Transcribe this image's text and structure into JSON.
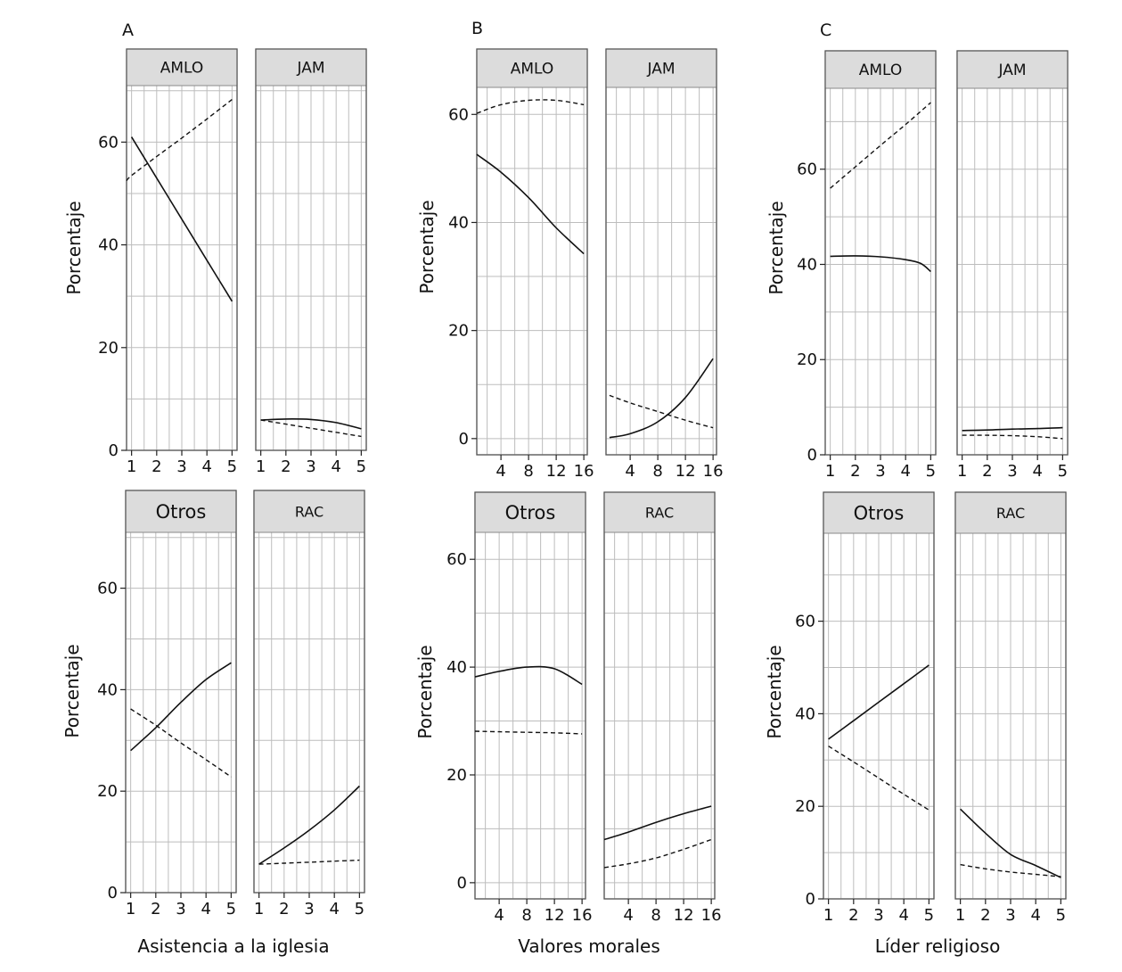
{
  "figure": {
    "common_ylabel": "Porcentaje",
    "column_titles": [
      "A",
      "B",
      "C"
    ],
    "xlabels": [
      "Asistencia a la iglesia",
      "Valores morales",
      "Líder religioso"
    ]
  },
  "chart_data": [
    {
      "type": "line",
      "column": "A",
      "title": "AMLO",
      "xlabel": "",
      "ylabel": "Porcentaje",
      "xlim": [
        0.8,
        5.2
      ],
      "ylim": [
        0,
        71
      ],
      "xticks": [
        1,
        2,
        3,
        4,
        5
      ],
      "yticks": [
        0,
        20,
        40,
        60
      ],
      "series": [
        {
          "name": "solid",
          "style": "solid",
          "x": [
            1,
            2,
            3,
            4,
            5
          ],
          "y": [
            61,
            53,
            45,
            37,
            29
          ]
        },
        {
          "name": "dashed",
          "style": "dashed",
          "x": [
            0.8,
            1,
            2,
            3,
            4,
            5
          ],
          "y": [
            52.5,
            53.5,
            57.2,
            60.8,
            64.5,
            68.3
          ]
        }
      ]
    },
    {
      "type": "line",
      "column": "A",
      "title": "JAM",
      "xlabel": "",
      "ylabel": "",
      "xlim": [
        0.8,
        5.2
      ],
      "ylim": [
        0,
        71
      ],
      "xticks": [
        1,
        2,
        3,
        4,
        5
      ],
      "yticks": [],
      "series": [
        {
          "name": "solid",
          "style": "solid",
          "x": [
            1,
            2,
            3,
            4,
            5
          ],
          "y": [
            5.9,
            6.1,
            6.0,
            5.4,
            4.2
          ]
        },
        {
          "name": "dashed",
          "style": "dashed",
          "x": [
            1,
            2,
            3,
            4,
            5
          ],
          "y": [
            5.9,
            5.1,
            4.3,
            3.5,
            2.7
          ]
        }
      ]
    },
    {
      "type": "line",
      "column": "A",
      "title": "Otros",
      "xlabel": "Asistencia a la iglesia",
      "ylabel": "Porcentaje",
      "xlim": [
        0.8,
        5.2
      ],
      "ylim": [
        0,
        71
      ],
      "xticks": [
        1,
        2,
        3,
        4,
        5
      ],
      "yticks": [
        0,
        20,
        40,
        60
      ],
      "series": [
        {
          "name": "solid",
          "style": "solid",
          "x": [
            1,
            2,
            3,
            4,
            5
          ],
          "y": [
            28,
            32.5,
            37.5,
            42,
            45.3
          ]
        },
        {
          "name": "dashed",
          "style": "dashed",
          "x": [
            1,
            2,
            3,
            4,
            5
          ],
          "y": [
            36.2,
            33,
            29.5,
            26.2,
            22.8
          ]
        }
      ]
    },
    {
      "type": "line",
      "column": "A",
      "title": "RAC",
      "xlabel": "Asistencia a la iglesia",
      "ylabel": "",
      "xlim": [
        0.8,
        5.2
      ],
      "ylim": [
        0,
        71
      ],
      "xticks": [
        1,
        2,
        3,
        4,
        5
      ],
      "yticks": [],
      "series": [
        {
          "name": "solid",
          "style": "solid",
          "x": [
            1,
            2,
            3,
            4,
            5
          ],
          "y": [
            5.6,
            8.8,
            12.3,
            16.3,
            21
          ]
        },
        {
          "name": "dashed",
          "style": "dashed",
          "x": [
            1,
            2,
            3,
            4,
            5
          ],
          "y": [
            5.6,
            5.8,
            6.0,
            6.2,
            6.4
          ]
        }
      ]
    },
    {
      "type": "line",
      "column": "B",
      "title": "AMLO",
      "xlabel": "",
      "ylabel": "Porcentaje",
      "xlim": [
        0.5,
        16.5
      ],
      "ylim": [
        -3,
        65
      ],
      "xticks": [
        4,
        8,
        12,
        16
      ],
      "yticks": [
        0,
        20,
        40,
        60
      ],
      "series": [
        {
          "name": "solid",
          "style": "solid",
          "x": [
            0.5,
            4,
            8,
            12,
            16
          ],
          "y": [
            52.6,
            49.3,
            44.6,
            39.0,
            34.2
          ]
        },
        {
          "name": "dashed",
          "style": "dashed",
          "x": [
            0.5,
            4,
            8,
            12,
            16
          ],
          "y": [
            60.2,
            61.8,
            62.6,
            62.6,
            61.8
          ]
        }
      ]
    },
    {
      "type": "line",
      "column": "B",
      "title": "JAM",
      "xlabel": "",
      "ylabel": "",
      "xlim": [
        0.5,
        16.5
      ],
      "ylim": [
        -3,
        65
      ],
      "xticks": [
        4,
        8,
        12,
        16
      ],
      "yticks": [],
      "series": [
        {
          "name": "solid",
          "style": "solid",
          "x": [
            1,
            4,
            8,
            12,
            16
          ],
          "y": [
            0.2,
            0.9,
            3.1,
            7.6,
            14.8
          ]
        },
        {
          "name": "dashed",
          "style": "dashed",
          "x": [
            1,
            4,
            8,
            12,
            16
          ],
          "y": [
            8,
            6.6,
            5.0,
            3.4,
            2.0
          ]
        }
      ]
    },
    {
      "type": "line",
      "column": "B",
      "title": "Otros",
      "xlabel": "Valores morales",
      "ylabel": "Porcentaje",
      "xlim": [
        0.5,
        16.5
      ],
      "ylim": [
        -3,
        65
      ],
      "xticks": [
        4,
        8,
        12,
        16
      ],
      "yticks": [
        0,
        20,
        40,
        60
      ],
      "series": [
        {
          "name": "solid",
          "style": "solid",
          "x": [
            0.5,
            4,
            8,
            12,
            16
          ],
          "y": [
            38.2,
            39.2,
            40.0,
            39.7,
            36.8
          ]
        },
        {
          "name": "dashed",
          "style": "dashed",
          "x": [
            0.5,
            4,
            8,
            12,
            16
          ],
          "y": [
            28.1,
            28.0,
            27.9,
            27.8,
            27.6
          ]
        }
      ]
    },
    {
      "type": "line",
      "column": "B",
      "title": "RAC",
      "xlabel": "Valores morales",
      "ylabel": "",
      "xlim": [
        0.5,
        16.5
      ],
      "ylim": [
        -3,
        65
      ],
      "xticks": [
        4,
        8,
        12,
        16
      ],
      "yticks": [],
      "series": [
        {
          "name": "solid",
          "style": "solid",
          "x": [
            0.5,
            4,
            8,
            12,
            16
          ],
          "y": [
            8,
            9.4,
            11.2,
            12.8,
            14.2
          ]
        },
        {
          "name": "dashed",
          "style": "dashed",
          "x": [
            0.5,
            4,
            8,
            12,
            16
          ],
          "y": [
            2.8,
            3.5,
            4.6,
            6.2,
            8.0
          ]
        }
      ]
    },
    {
      "type": "line",
      "column": "C",
      "title": "AMLO",
      "xlabel": "",
      "ylabel": "Porcentaje",
      "xlim": [
        0.8,
        5.2
      ],
      "ylim": [
        0,
        77
      ],
      "xticks": [
        1,
        2,
        3,
        4,
        5
      ],
      "yticks": [
        0,
        20,
        40,
        60
      ],
      "series": [
        {
          "name": "solid",
          "style": "solid",
          "x": [
            1,
            2,
            3,
            4,
            4.6,
            5
          ],
          "y": [
            41.7,
            41.8,
            41.6,
            41.0,
            40.2,
            38.5
          ]
        },
        {
          "name": "dashed",
          "style": "dashed",
          "x": [
            1,
            2,
            3,
            4,
            5
          ],
          "y": [
            56,
            60.5,
            65,
            69.4,
            74
          ]
        }
      ]
    },
    {
      "type": "line",
      "column": "C",
      "title": "JAM",
      "xlabel": "",
      "ylabel": "",
      "xlim": [
        0.8,
        5.2
      ],
      "ylim": [
        0,
        77
      ],
      "xticks": [
        1,
        2,
        3,
        4,
        5
      ],
      "yticks": [],
      "series": [
        {
          "name": "solid",
          "style": "solid",
          "x": [
            1,
            2,
            3,
            4,
            5
          ],
          "y": [
            5.1,
            5.2,
            5.4,
            5.5,
            5.7
          ]
        },
        {
          "name": "dashed",
          "style": "dashed",
          "x": [
            1,
            2,
            3,
            4,
            5
          ],
          "y": [
            4.1,
            4.1,
            4.0,
            3.8,
            3.4
          ]
        }
      ]
    },
    {
      "type": "line",
      "column": "C",
      "title": "Otros",
      "xlabel": "Líder religioso",
      "ylabel": "Porcentaje",
      "xlim": [
        0.8,
        5.2
      ],
      "ylim": [
        0,
        79
      ],
      "xticks": [
        1,
        2,
        3,
        4,
        5
      ],
      "yticks": [
        20,
        40,
        60
      ],
      "yticks_extra": [
        0
      ],
      "series": [
        {
          "name": "solid",
          "style": "solid",
          "x": [
            1,
            2,
            3,
            4,
            5
          ],
          "y": [
            34.5,
            38.5,
            42.5,
            46.5,
            50.5
          ]
        },
        {
          "name": "dashed",
          "style": "dashed",
          "x": [
            1,
            2,
            3,
            4,
            5
          ],
          "y": [
            33,
            29.6,
            26.1,
            22.6,
            19.2
          ]
        }
      ]
    },
    {
      "type": "line",
      "column": "C",
      "title": "RAC",
      "xlabel": "Líder religioso",
      "ylabel": "",
      "xlim": [
        0.8,
        5.2
      ],
      "ylim": [
        0,
        79
      ],
      "xticks": [
        1,
        2,
        3,
        4,
        5
      ],
      "yticks": [],
      "series": [
        {
          "name": "solid",
          "style": "solid",
          "x": [
            1,
            2,
            3,
            4,
            5
          ],
          "y": [
            19.4,
            14.2,
            9.6,
            7.2,
            4.6
          ]
        },
        {
          "name": "dashed",
          "style": "dashed",
          "x": [
            1,
            2,
            3,
            4,
            5
          ],
          "y": [
            7.4,
            6.5,
            5.8,
            5.3,
            4.8
          ]
        }
      ]
    }
  ]
}
